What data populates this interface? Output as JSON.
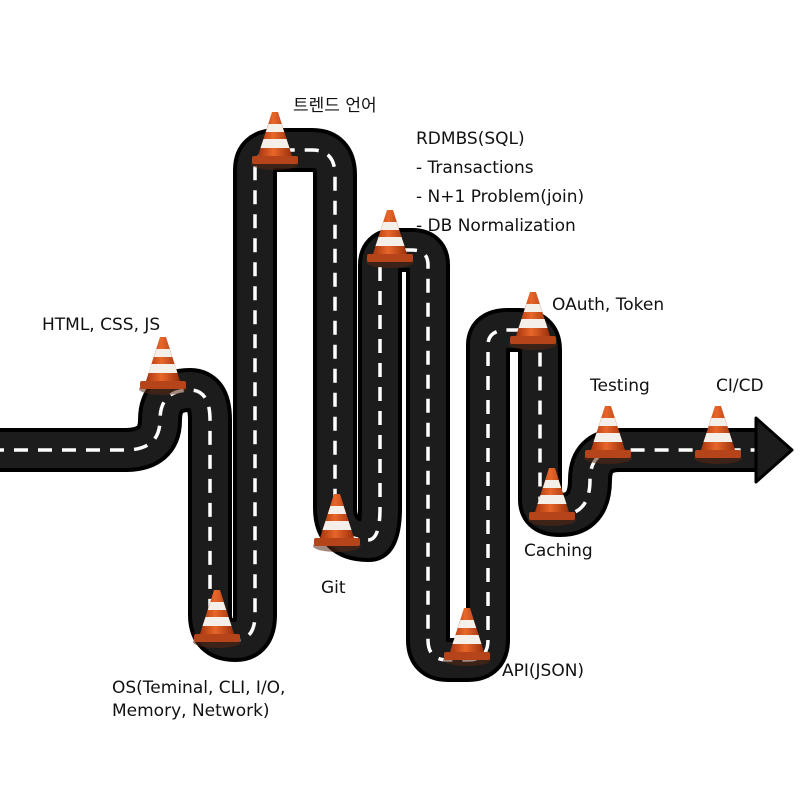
{
  "colors": {
    "road": "#1a1a1a",
    "road_edge": "#000000",
    "dash": "#ffffff",
    "cone_orange": "#d9541e",
    "cone_stripe": "#f4efe8",
    "cone_base": "#c8491a"
  },
  "milestones": [
    {
      "id": "html",
      "lines": [
        "HTML, CSS, JS"
      ]
    },
    {
      "id": "os",
      "lines": [
        "OS(Teminal, CLI, I/O,",
        "Memory, Network)"
      ]
    },
    {
      "id": "trend",
      "lines": [
        "트렌드 언어"
      ]
    },
    {
      "id": "git",
      "lines": [
        "Git"
      ]
    },
    {
      "id": "rdbms",
      "lines": [
        "RDMBS(SQL)",
        "- Transactions",
        "- N+1 Problem(join)",
        "- DB Normalization"
      ]
    },
    {
      "id": "api",
      "lines": [
        "API(JSON)"
      ]
    },
    {
      "id": "oauth",
      "lines": [
        "OAuth, Token"
      ]
    },
    {
      "id": "caching",
      "lines": [
        "Caching"
      ]
    },
    {
      "id": "testing",
      "lines": [
        "Testing"
      ]
    },
    {
      "id": "cicd",
      "lines": [
        "CI/CD"
      ]
    }
  ],
  "icons": {
    "cone": "traffic-cone-icon",
    "arrow": "arrow-head-icon"
  }
}
